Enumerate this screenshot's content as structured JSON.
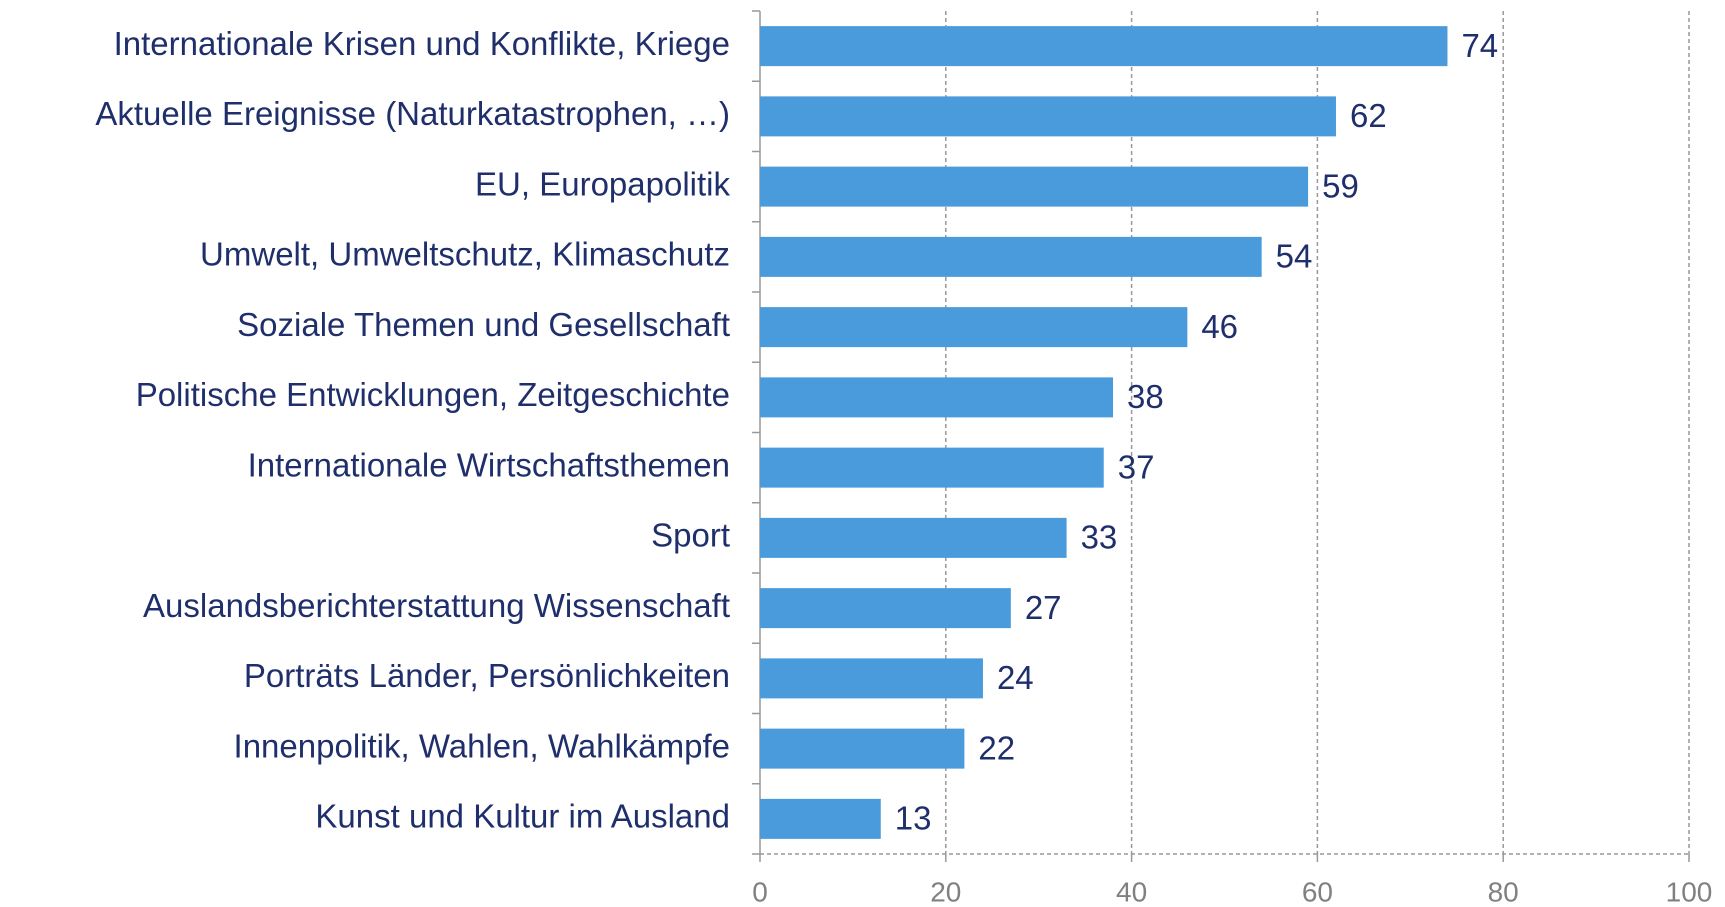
{
  "chart_data": {
    "type": "bar",
    "orientation": "horizontal",
    "categories": [
      "Internationale Krisen und Konflikte, Kriege",
      "Aktuelle Ereignisse (Naturkatastrophen, …)",
      "EU, Europapolitik",
      "Umwelt, Umweltschutz, Klimaschutz",
      "Soziale Themen und Gesellschaft",
      "Politische Entwicklungen, Zeitgeschichte",
      "Internationale Wirtschaftsthemen",
      "Sport",
      "Auslandsberichterstattung Wissenschaft",
      "Porträts Länder, Persönlichkeiten",
      "Innenpolitik, Wahlen, Wahlkämpfe",
      "Kunst und Kultur im Ausland"
    ],
    "values": [
      74,
      62,
      59,
      54,
      46,
      38,
      37,
      33,
      27,
      24,
      22,
      13
    ],
    "color": "#4a9bdc",
    "xlim": [
      0,
      100
    ],
    "xticks": [
      0,
      20,
      40,
      60,
      80,
      100
    ],
    "grid": true
  }
}
